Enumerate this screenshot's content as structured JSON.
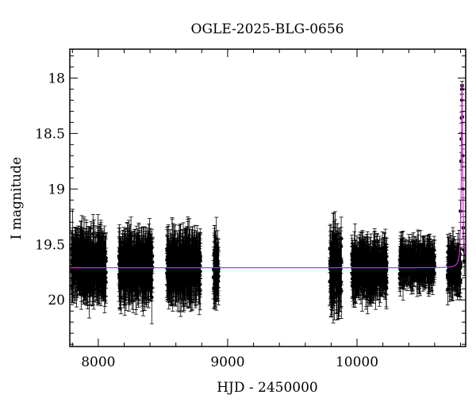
{
  "chart_data": {
    "type": "scatter",
    "title": "OGLE-2025-BLG-0656",
    "xlabel": "HJD - 2450000",
    "ylabel": "I magnitude",
    "xlim": [
      7780,
      10840
    ],
    "ylim": [
      20.42,
      17.74
    ],
    "y_inverted": true,
    "x_ticks": [
      8000,
      9000,
      10000
    ],
    "x_tick_labels": [
      "8000",
      "9000",
      "10000"
    ],
    "y_ticks": [
      18,
      18.5,
      19,
      19.5,
      20
    ],
    "y_tick_labels": [
      "18",
      "18.5",
      "19",
      "19.5",
      "20"
    ],
    "grid": false,
    "colors": {
      "data": "#000000",
      "model": "#cc33cc"
    },
    "baseline_magnitude": 19.71,
    "seasons": [
      {
        "x_start": 7790,
        "x_end": 8060,
        "mean_mag": 19.68,
        "scatter": 0.16,
        "error": 0.2
      },
      {
        "x_start": 8160,
        "x_end": 8420,
        "mean_mag": 19.7,
        "scatter": 0.16,
        "error": 0.2
      },
      {
        "x_start": 8530,
        "x_end": 8790,
        "mean_mag": 19.7,
        "scatter": 0.16,
        "error": 0.2
      },
      {
        "x_start": 8890,
        "x_end": 8930,
        "mean_mag": 19.72,
        "scatter": 0.16,
        "error": 0.2
      },
      {
        "x_start": 9790,
        "x_end": 9880,
        "mean_mag": 19.72,
        "scatter": 0.2,
        "error": 0.22
      },
      {
        "x_start": 9960,
        "x_end": 10230,
        "mean_mag": 19.72,
        "scatter": 0.15,
        "error": 0.16
      },
      {
        "x_start": 10330,
        "x_end": 10600,
        "mean_mag": 19.68,
        "scatter": 0.12,
        "error": 0.12
      },
      {
        "x_start": 10700,
        "x_end": 10800,
        "mean_mag": 19.72,
        "scatter": 0.15,
        "error": 0.14
      }
    ],
    "event": {
      "t0": 10812,
      "peak_mag": 18.05,
      "width": 8,
      "points": [
        {
          "x": 10800,
          "y": 19.2,
          "err": 0.1
        },
        {
          "x": 10804,
          "y": 18.75,
          "err": 0.08
        },
        {
          "x": 10806,
          "y": 18.55,
          "err": 0.06
        },
        {
          "x": 10808,
          "y": 18.36,
          "err": 0.05
        },
        {
          "x": 10810,
          "y": 18.2,
          "err": 0.05
        },
        {
          "x": 10811,
          "y": 18.1,
          "err": 0.04
        },
        {
          "x": 10812,
          "y": 18.07,
          "err": 0.04
        },
        {
          "x": 10814,
          "y": 18.35,
          "err": 0.05
        },
        {
          "x": 10816,
          "y": 18.7,
          "err": 0.06
        },
        {
          "x": 10818,
          "y": 19.0,
          "err": 0.08
        },
        {
          "x": 10821,
          "y": 19.35,
          "err": 0.1
        },
        {
          "x": 10825,
          "y": 19.55,
          "err": 0.12
        },
        {
          "x": 10829,
          "y": 19.65,
          "err": 0.13
        }
      ]
    }
  }
}
